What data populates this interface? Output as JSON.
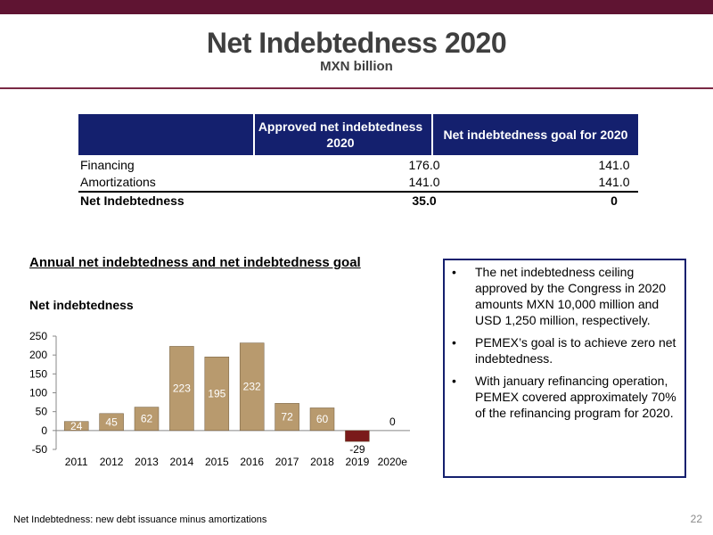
{
  "header": {
    "title": "Net Indebtedness 2020",
    "subtitle": "MXN billion"
  },
  "table": {
    "columns": [
      "",
      "Approved net indebtedness 2020",
      "Net indebtedness goal for 2020"
    ],
    "rows": [
      {
        "label": "Financing",
        "approved": "176.0",
        "goal": "141.0"
      },
      {
        "label": "Amortizations",
        "approved": "141.0",
        "goal": "141.0"
      },
      {
        "label": "Net Indebtedness",
        "approved": "35.0",
        "goal": "0"
      }
    ]
  },
  "section": {
    "title": "Annual net indebtedness and net indebtedness goal"
  },
  "chart_data": {
    "type": "bar",
    "title": "Net indebtedness",
    "categories": [
      "2011",
      "2012",
      "2013",
      "2014",
      "2015",
      "2016",
      "2017",
      "2018",
      "2019",
      "2020e"
    ],
    "values": [
      24,
      45,
      62,
      223,
      195,
      232,
      72,
      60,
      -29,
      0
    ],
    "labels": [
      "24",
      "45",
      "62",
      "223",
      "195",
      "232",
      "72",
      "60",
      "-29",
      "0"
    ],
    "yticks": [
      250,
      200,
      150,
      100,
      50,
      0,
      -50
    ],
    "ylim": [
      -50,
      250
    ],
    "colors": {
      "positive": "#b89a6e",
      "negative": "#7a1a1a"
    },
    "grid": false
  },
  "notes": {
    "items": [
      "The net indebtedness ceiling approved by the Congress in 2020 amounts MXN 10,000 million and USD 1,250 million, respectively.",
      "PEMEX’s goal is to achieve zero net indebtedness.",
      "With january refinancing operation, PEMEX covered approximately 70% of the refinancing program for 2020."
    ]
  },
  "footer": {
    "note": "Net Indebtedness: new debt issuance minus amortizations",
    "page": "22"
  }
}
